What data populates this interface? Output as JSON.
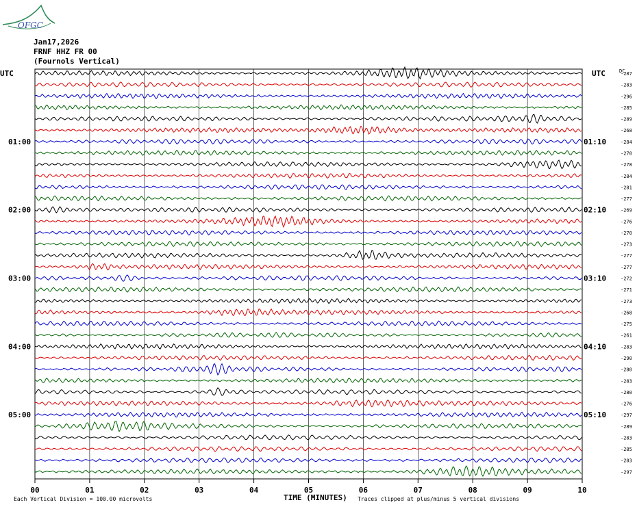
{
  "header": {
    "logo_text": "OFGC",
    "date": "Jan17,2026",
    "station": "FRNF HHZ FR 00",
    "location": "(Fournols Vertical)"
  },
  "footer": {
    "scale_note": "Each Vertical Division =  100.00 microvolts",
    "xlabel": "TIME (MINUTES)",
    "clip_note": "Traces clipped at plus/minus 5 vertical divisions"
  },
  "chart_data": {
    "type": "line",
    "title": "",
    "xlabel": "TIME (MINUTES)",
    "ylabel": "",
    "xlim": [
      0,
      10
    ],
    "x_ticks": [
      "00",
      "01",
      "02",
      "03",
      "04",
      "05",
      "06",
      "07",
      "08",
      "09",
      "10"
    ],
    "left_axis_label": "UTC",
    "right_axis_label": "UTC",
    "dc_label": "DC",
    "left_time_labels": [
      {
        "trace": 6,
        "label": "01:00"
      },
      {
        "trace": 12,
        "label": "02:00"
      },
      {
        "trace": 18,
        "label": "03:00"
      },
      {
        "trace": 24,
        "label": "04:00"
      },
      {
        "trace": 30,
        "label": "05:00"
      }
    ],
    "right_time_labels": [
      {
        "trace": 6,
        "label": "01:10"
      },
      {
        "trace": 12,
        "label": "02:10"
      },
      {
        "trace": 18,
        "label": "03:10"
      },
      {
        "trace": 24,
        "label": "04:10"
      },
      {
        "trace": 30,
        "label": "05:10"
      }
    ],
    "trace_colors": [
      "#000000",
      "#dd0000",
      "#0000cc",
      "#006400"
    ],
    "dc_offsets": [
      -287,
      -283,
      -296,
      -285,
      -289,
      -268,
      -284,
      -270,
      -278,
      -284,
      -281,
      -277,
      -269,
      -276,
      -270,
      -273,
      -277,
      -277,
      -272,
      -271,
      -273,
      -268,
      -275,
      -261,
      -283,
      -290,
      -280,
      -283,
      -280,
      -276,
      -297,
      -289,
      -283,
      -285,
      -283,
      -297
    ],
    "grid": true
  }
}
